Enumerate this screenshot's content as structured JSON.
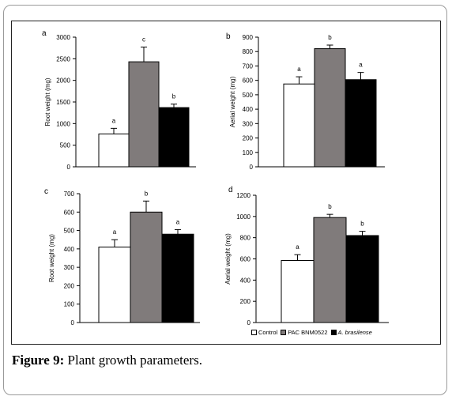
{
  "figure": {
    "caption_label": "Figure 9:",
    "caption_text": " Plant growth parameters."
  },
  "legend": {
    "items": [
      {
        "label": "Control",
        "color": "#ffffff",
        "italic": false
      },
      {
        "label": "PAC BNM0522",
        "color": "#807b7b",
        "italic": false
      },
      {
        "label": "A. brasilense",
        "color": "#000000",
        "italic": true
      }
    ]
  },
  "chart_data": [
    {
      "panel": "a",
      "type": "bar",
      "categories": [
        "Control",
        "PAC BNM0522",
        "A. brasilense"
      ],
      "values": [
        760,
        2430,
        1370
      ],
      "errors": [
        130,
        340,
        80
      ],
      "significance": [
        "a",
        "c",
        "b"
      ],
      "colors": [
        "#ffffff",
        "#807b7b",
        "#000000"
      ],
      "ylabel": "Root weight (mg)",
      "ylim": [
        0,
        3000
      ],
      "yticks": [
        0,
        500,
        1000,
        1500,
        2000,
        2500,
        3000
      ]
    },
    {
      "panel": "b",
      "type": "bar",
      "categories": [
        "Control",
        "PAC BNM0522",
        "A. brasilense"
      ],
      "values": [
        575,
        820,
        605
      ],
      "errors": [
        50,
        25,
        50
      ],
      "significance": [
        "a",
        "b",
        "a"
      ],
      "colors": [
        "#ffffff",
        "#807b7b",
        "#000000"
      ],
      "ylabel": "Aerial weight (mg)",
      "ylim": [
        0,
        900
      ],
      "yticks": [
        0,
        100,
        200,
        300,
        400,
        500,
        600,
        700,
        800,
        900
      ]
    },
    {
      "panel": "c",
      "type": "bar",
      "categories": [
        "Control",
        "PAC BNM0522",
        "A. brasilense"
      ],
      "values": [
        410,
        600,
        480
      ],
      "errors": [
        40,
        60,
        25
      ],
      "significance": [
        "a",
        "b",
        "a"
      ],
      "colors": [
        "#ffffff",
        "#807b7b",
        "#000000"
      ],
      "ylabel": "Root weight (mg)",
      "ylim": [
        0,
        700
      ],
      "yticks": [
        0,
        100,
        200,
        300,
        400,
        500,
        600,
        700
      ]
    },
    {
      "panel": "d",
      "type": "bar",
      "categories": [
        "Control",
        "PAC BNM0522",
        "A. brasilense"
      ],
      "values": [
        585,
        990,
        820
      ],
      "errors": [
        55,
        30,
        40
      ],
      "significance": [
        "a",
        "b",
        "b"
      ],
      "colors": [
        "#ffffff",
        "#807b7b",
        "#000000"
      ],
      "ylabel": "Aerial weight (mg)",
      "ylim": [
        0,
        1200
      ],
      "yticks": [
        0,
        200,
        400,
        600,
        800,
        1000,
        1200
      ]
    }
  ]
}
